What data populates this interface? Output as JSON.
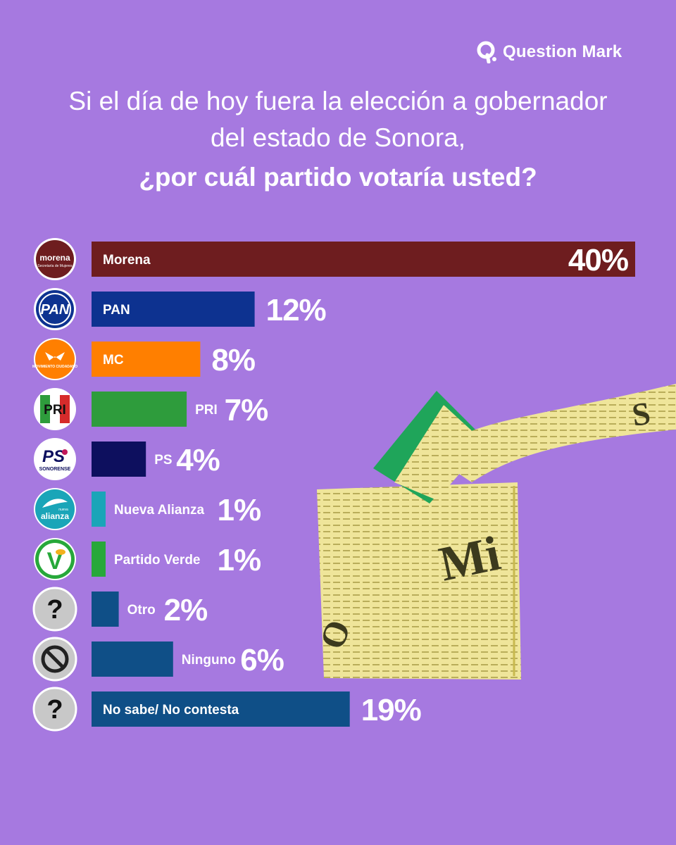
{
  "brand": {
    "name": "Question Mark",
    "icon": "question-mark-logo-icon"
  },
  "headline": {
    "line1": "Si el día de hoy fuera la elección a gobernador",
    "line2": "del estado de Sonora,",
    "line3": "¿por cuál partido votaría usted?"
  },
  "chart_data": {
    "type": "bar",
    "orientation": "horizontal",
    "categories": [
      "Morena",
      "PAN",
      "MC",
      "PRI",
      "PS",
      "Nueva Alianza",
      "Partido Verde",
      "Otro",
      "Ninguno",
      "No sabe/ No contesta"
    ],
    "values": [
      40,
      12,
      8,
      7,
      4,
      1,
      1,
      2,
      6,
      19
    ],
    "value_labels": [
      "40%",
      "12%",
      "8%",
      "7%",
      "4%",
      "1%",
      "1%",
      "2%",
      "6%",
      "19%"
    ],
    "unit": "%",
    "xlim": [
      0,
      40
    ],
    "colors": [
      "#6e1d1f",
      "#0d3290",
      "#ff7f00",
      "#2e9c3c",
      "#0d0f5e",
      "#1aa5b8",
      "#27a83a",
      "#0f4f87",
      "#0f4f87",
      "#0f4f87"
    ],
    "logos": [
      {
        "icon": "morena-logo-icon",
        "text": "morena",
        "subtext": "Secretaría de Mujeres"
      },
      {
        "icon": "pan-logo-icon",
        "text": "PAN"
      },
      {
        "icon": "movimiento-ciudadano-logo-icon",
        "text": "MOVIMIENTO CIUDADANO"
      },
      {
        "icon": "pri-logo-icon",
        "text": "PRI"
      },
      {
        "icon": "ps-sonorense-logo-icon",
        "text": "PS",
        "subtext": "SONORENSE"
      },
      {
        "icon": "nueva-alianza-logo-icon",
        "text": "alianza",
        "subtext": "nueva"
      },
      {
        "icon": "partido-verde-logo-icon",
        "text": "V"
      },
      {
        "icon": "question-circle-icon",
        "text": "?"
      },
      {
        "icon": "no-symbol-icon",
        "text": ""
      },
      {
        "icon": "question-circle-icon",
        "text": "?"
      }
    ],
    "title": "¿por cuál partido votaría usted?",
    "xlabel": "",
    "ylabel": ""
  }
}
